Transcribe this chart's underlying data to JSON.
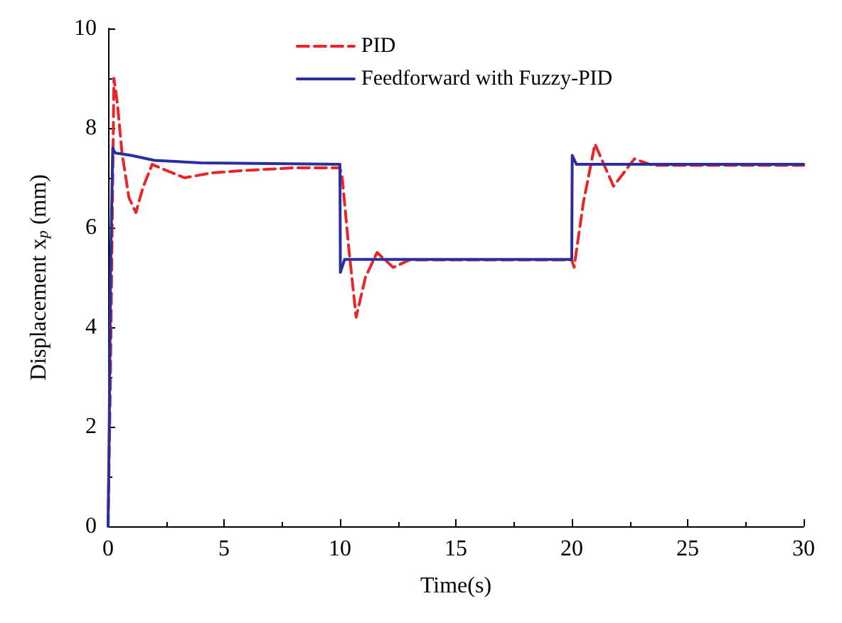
{
  "chart_data": {
    "type": "line",
    "xlabel": "Time(s)",
    "ylabel": "Displacement x$_{p}$ (mm)",
    "xlim": [
      0,
      30
    ],
    "xticks": [
      0,
      5,
      10,
      15,
      20,
      25,
      30
    ],
    "ylim": [
      0,
      10
    ],
    "yticks": [
      0,
      2,
      4,
      6,
      8,
      10
    ],
    "grid": false,
    "legend": "top left",
    "marker": "none",
    "series": [
      {
        "name": "PID",
        "color": "#e8262a",
        "line_style": "dashed",
        "x": [
          0,
          0.1,
          0.25,
          0.4,
          0.6,
          0.9,
          1.2,
          1.5,
          1.9,
          2.5,
          3.3,
          4.5,
          6,
          8,
          10,
          10.1,
          10.4,
          10.7,
          11.1,
          11.6,
          12.3,
          13,
          15,
          20,
          20.1,
          20.5,
          21,
          21.8,
          22.7,
          23.5,
          25,
          30
        ],
        "values": [
          0,
          3,
          9,
          8.5,
          7.5,
          6.6,
          6.3,
          6.8,
          7.27,
          7.15,
          7,
          7.1,
          7.15,
          7.2,
          7.2,
          7,
          5.5,
          4.2,
          5,
          5.5,
          5.2,
          5.35,
          5.35,
          5.35,
          5.2,
          6.5,
          7.68,
          6.83,
          7.38,
          7.25,
          7.25,
          7.25
        ]
      },
      {
        "name": "Feedforward with Fuzzy-PID",
        "color": "#2b2f9e",
        "line_style": "solid",
        "x": [
          0,
          0.05,
          0.1,
          0.2,
          0.3,
          1,
          2,
          4,
          10,
          10.02,
          10.2,
          20,
          20.02,
          20.2,
          30
        ],
        "values": [
          0,
          2,
          5,
          7.6,
          7.5,
          7.45,
          7.35,
          7.3,
          7.27,
          5.1,
          5.36,
          5.36,
          7.45,
          7.27,
          7.27
        ]
      }
    ]
  }
}
